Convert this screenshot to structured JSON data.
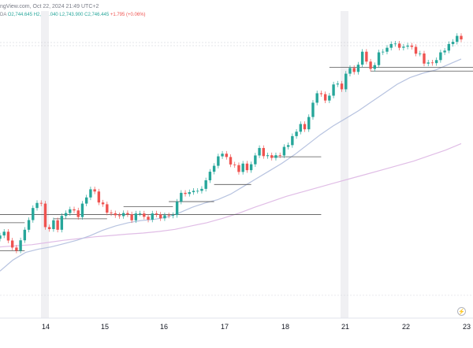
{
  "header": {
    "title": "ngView.com, Oct 22, 2024 21:49 UTC+2",
    "ohlc_prefix": "DA",
    "open": "O2,744.645",
    "high": "H2,748.040",
    "low": "L2,743.900",
    "close": "C2,746.445",
    "change": "+1.795 (+0.06%)"
  },
  "watermark_icon": "tradingview-logo-icon",
  "colors": {
    "up": "#26a69a",
    "down": "#ef5350",
    "ma_fast": "#b7c3e0",
    "ma_slow": "#e0bde6",
    "level_line": "#555555",
    "session_shade": "#f0f0f3"
  },
  "chart_data": {
    "type": "candlestick",
    "x_tick_labels": [
      "14",
      "15",
      "16",
      "17",
      "18",
      "21",
      "22",
      "23"
    ],
    "grid": false,
    "candles_close": [
      2657.2,
      2658.9,
      2654.9,
      2651.7,
      2650.3,
      2655.0,
      2659.8,
      2664.2,
      2669.7,
      2672.0,
      2671.7,
      2661.0,
      2660.1,
      2664.1,
      2659.8,
      2666.1,
      2667.4,
      2669.1,
      2668.6,
      2665.6,
      2671.7,
      2674.5,
      2678.2,
      2677.2,
      2672.2,
      2671.4,
      2667.6,
      2667.3,
      2666.4,
      2666.0,
      2667.4,
      2666.8,
      2664.1,
      2667.2,
      2667.2,
      2665.7,
      2664.4,
      2667.2,
      2666.7,
      2665.0,
      2666.4,
      2666.2,
      2666.5,
      2672.6,
      2676.6,
      2676.1,
      2676.9,
      2677.5,
      2677.5,
      2678.4,
      2682.3,
      2686.2,
      2688.9,
      2693.2,
      2694.4,
      2692.9,
      2689.5,
      2689.2,
      2686.1,
      2689.9,
      2686.9,
      2689.6,
      2693.6,
      2697.0,
      2693.3,
      2693.7,
      2692.5,
      2693.7,
      2693.6,
      2697.5,
      2698.3,
      2702.4,
      2704.4,
      2707.9,
      2705.5,
      2711.1,
      2717.6,
      2721.9,
      2721.5,
      2718.6,
      2720.8,
      2725.9,
      2726.3,
      2723.7,
      2730.8,
      2733.4,
      2731.6,
      2734.9,
      2740.8,
      2736.3,
      2733.0,
      2734.7,
      2740.5,
      2740.8,
      2742.6,
      2744.3,
      2744.5,
      2742.6,
      2743.1,
      2743.6,
      2743.0,
      2739.9,
      2740.0,
      2735.4,
      2735.9,
      2735.6,
      2737.0,
      2740.5,
      2741.3,
      2744.3,
      2745.3,
      2748.0,
      2746.4
    ],
    "ma_fast": [
      2641.0,
      2646.0,
      2649.5,
      2651.0,
      2652.0,
      2653.5,
      2655.0,
      2657.0,
      2659.5,
      2661.5,
      2663.0,
      2664.0,
      2664.5,
      2665.5,
      2667.5,
      2670.0,
      2672.0,
      2673.5,
      2676.0,
      2679.5,
      2683.0,
      2686.5,
      2690.0,
      2694.0,
      2698.5,
      2703.0,
      2707.0,
      2710.5,
      2714.0,
      2718.0,
      2722.0,
      2726.0,
      2729.0,
      2731.0,
      2732.5,
      2735.0,
      2737.5
    ],
    "ma_slow": [
      2652.0,
      2652.5,
      2653.0,
      2654.0,
      2655.0,
      2655.8,
      2656.6,
      2657.2,
      2657.8,
      2658.3,
      2659.0,
      2660.0,
      2661.5,
      2663.0,
      2665.0,
      2667.3,
      2670.0,
      2672.5,
      2675.0,
      2677.0,
      2679.0,
      2681.0,
      2683.0,
      2685.0,
      2687.0,
      2689.0,
      2691.0,
      2693.5,
      2696.0,
      2699.0
    ],
    "levels": [
      {
        "from_index": 0,
        "to_index": 6,
        "value": 2663.0
      },
      {
        "from_index": 0,
        "to_index": 6,
        "value": 2650.2
      },
      {
        "from_index": 13,
        "to_index": 26,
        "value": 2664.8
      },
      {
        "from_index": 30,
        "to_index": 42,
        "value": 2670.3
      },
      {
        "from_index": 41,
        "to_index": 52,
        "value": 2672.6
      },
      {
        "from_index": 0,
        "to_index": 78,
        "value": 2666.7
      },
      {
        "from_index": 52,
        "to_index": 61,
        "value": 2680.4
      },
      {
        "from_index": 66,
        "to_index": 78,
        "value": 2693.0
      },
      {
        "from_index": 80,
        "to_index": 115,
        "value": 2733.7
      },
      {
        "from_index": 90,
        "to_index": 115,
        "value": 2732.0
      }
    ]
  }
}
